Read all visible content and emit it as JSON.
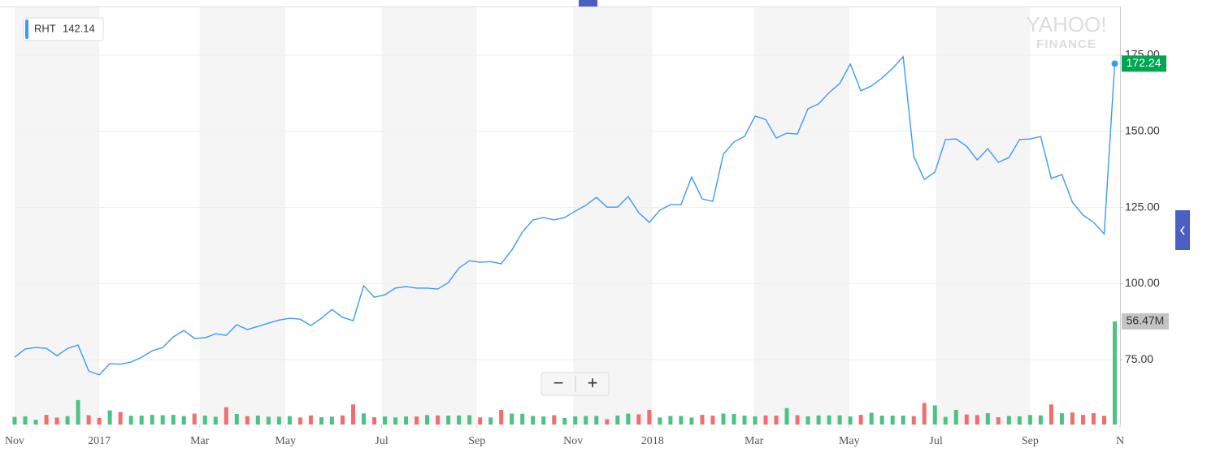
{
  "chart_data": {
    "type": "line",
    "watermark": [
      "YAHOO!",
      "FINANCE"
    ],
    "legend_value": 142.14,
    "zoom_buttons": [
      "−",
      "+"
    ],
    "xlim": [
      0,
      104.5
    ],
    "xticks": [
      {
        "value": 0,
        "label": "Nov"
      },
      {
        "value": 8,
        "label": "2017"
      },
      {
        "value": 17.5,
        "label": "Mar"
      },
      {
        "value": 25.6,
        "label": "May"
      },
      {
        "value": 34.7,
        "label": "Jul"
      },
      {
        "value": 43.7,
        "label": "Sep"
      },
      {
        "value": 52.8,
        "label": "Nov"
      },
      {
        "value": 60.3,
        "label": "2018"
      },
      {
        "value": 69.9,
        "label": "Mar"
      },
      {
        "value": 78.9,
        "label": "May"
      },
      {
        "value": 87.1,
        "label": "Jul"
      },
      {
        "value": 96,
        "label": "Sep"
      },
      {
        "value": 104.5,
        "label": "N"
      }
    ],
    "ylim": [
      53.7,
      191
    ],
    "yticks": [
      {
        "value": 75,
        "label": "75.00"
      },
      {
        "value": 100,
        "label": "100.00"
      },
      {
        "value": 125,
        "label": "125.00"
      },
      {
        "value": 150,
        "label": "150.00"
      },
      {
        "value": 175,
        "label": "175.00"
      }
    ],
    "y2lim": [
      0,
      229
    ],
    "grid": true,
    "last_price_color": "#00a551",
    "up_color": "#4cc283",
    "down_color": "#f26d6d",
    "series": [
      {
        "name": "RHT",
        "color": "#3b99fc",
        "values": [
          75.8,
          78.5,
          79,
          78.7,
          76.3,
          78.7,
          79.8,
          71.3,
          70,
          73.7,
          73.5,
          74.2,
          75.8,
          77.9,
          79,
          82.5,
          84.6,
          82,
          82.2,
          83.5,
          83,
          86.5,
          84.9,
          85.9,
          87,
          88,
          88.6,
          88.3,
          86.2,
          88.6,
          91.5,
          88.9,
          87.8,
          99.3,
          95.5,
          96.3,
          98.5,
          99,
          98.5,
          98.5,
          98.2,
          100.3,
          105.1,
          107.5,
          107,
          107.2,
          106.5,
          111,
          116.9,
          120.9,
          121.7,
          120.9,
          121.7,
          123.8,
          125.7,
          128.3,
          125.1,
          125.1,
          128.6,
          123.3,
          120.1,
          124.1,
          125.9,
          125.9,
          135,
          127.8,
          127,
          142.5,
          146.5,
          148.3,
          155,
          153.9,
          147.8,
          149.4,
          149.1,
          157.4,
          159,
          162.7,
          165.7,
          172.1,
          163.3,
          164.9,
          167.5,
          170.7,
          174.5,
          141.7,
          134.2,
          136.6,
          147.3,
          147.5,
          145.1,
          140.6,
          144.3,
          139.8,
          141.4,
          147.3,
          147.5,
          148.3,
          134.5,
          135.8,
          126.7,
          122.5,
          120.1,
          116.3,
          172.24
        ]
      },
      {
        "axis": "y2",
        "type": "bar",
        "last_label": "56.47M",
        "values": [
          4.2,
          4.5,
          2.6,
          5.3,
          3.8,
          4.6,
          13.4,
          5.1,
          3.6,
          7.7,
          6.9,
          4.8,
          4.9,
          5.3,
          5.1,
          5.3,
          4.6,
          6.0,
          4.9,
          4.3,
          9.5,
          5.8,
          4.6,
          4.9,
          4.3,
          4.3,
          4.6,
          3.9,
          5.0,
          4.0,
          4.3,
          5.0,
          11.0,
          6.1,
          4.0,
          4.4,
          3.9,
          4.4,
          4.4,
          5.2,
          5.0,
          4.9,
          5.0,
          5.1,
          3.9,
          3.9,
          8.0,
          6.0,
          5.9,
          4.7,
          4.4,
          5.1,
          3.6,
          4.5,
          4.7,
          4.7,
          2.9,
          4.9,
          6.0,
          5.6,
          8.0,
          3.9,
          4.7,
          4.7,
          3.8,
          5.3,
          4.9,
          6.0,
          5.8,
          4.9,
          4.5,
          5.0,
          4.9,
          9.0,
          5.1,
          4.5,
          5.0,
          5.0,
          5.0,
          4.4,
          5.3,
          6.4,
          4.9,
          4.9,
          4.9,
          4.6,
          11.8,
          10.5,
          4.2,
          8.0,
          5.5,
          5.2,
          6.2,
          4.0,
          4.7,
          4.5,
          5.2,
          5.0,
          11.0,
          6.2,
          6.6,
          5.3,
          6.2,
          4.8,
          56.47
        ]
      }
    ]
  }
}
